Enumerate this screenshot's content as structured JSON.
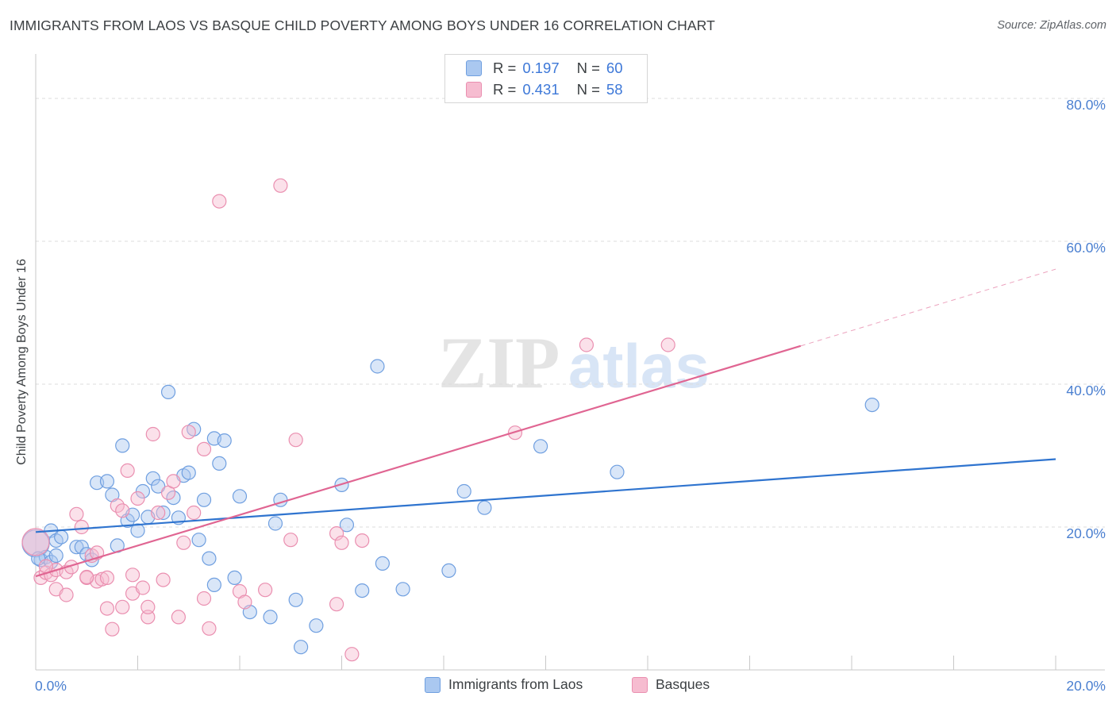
{
  "title": "IMMIGRANTS FROM LAOS VS BASQUE CHILD POVERTY AMONG BOYS UNDER 16 CORRELATION CHART",
  "source": "Source: ZipAtlas.com",
  "watermark": {
    "zip": "ZIP",
    "atlas": "atlas"
  },
  "legend_top": [
    {
      "r_label": "R =",
      "r_value": "0.197",
      "n_label": "N =",
      "n_value": "60"
    },
    {
      "r_label": "R =",
      "r_value": "0.431",
      "n_label": "N =",
      "n_value": "58"
    }
  ],
  "legend_bottom": [
    "Immigrants from Laos",
    "Basques"
  ],
  "colors": {
    "series_blue_fill": "#aac8f0",
    "series_blue_stroke": "#6f9fe0",
    "series_blue_line": "#2f74cf",
    "series_pink_fill": "#f6bcd0",
    "series_pink_stroke": "#ea8fb0",
    "series_pink_line": "#e06592",
    "tick_text": "#4a7fd0",
    "grid": "#dddddd"
  },
  "chart_data": {
    "type": "scatter",
    "title": "IMMIGRANTS FROM LAOS VS BASQUE CHILD POVERTY AMONG BOYS UNDER 16 CORRELATION CHART",
    "xlabel": "",
    "ylabel": "Child Poverty Among Boys Under 16",
    "xlim": [
      0,
      20
    ],
    "ylim": [
      0,
      85
    ],
    "x_ticks": [
      "0.0%",
      "20.0%"
    ],
    "y_ticks": [
      {
        "value": 20,
        "label": "20.0%"
      },
      {
        "value": 40,
        "label": "40.0%"
      },
      {
        "value": 60,
        "label": "60.0%"
      },
      {
        "value": 80,
        "label": "80.0%"
      }
    ],
    "grid": "horizontal dashed",
    "legend_position": "top-center",
    "series": [
      {
        "name": "Immigrants from Laos",
        "R": 0.197,
        "N": 60,
        "trend": {
          "x": [
            0,
            20
          ],
          "y": [
            19.3,
            29.5
          ],
          "dashed_from": null
        },
        "points": [
          [
            0.0,
            17.7
          ],
          [
            0.1,
            15.4
          ],
          [
            0.2,
            15.8
          ],
          [
            0.3,
            19.5
          ],
          [
            0.3,
            15.1
          ],
          [
            0.4,
            16.0
          ],
          [
            0.4,
            18.1
          ],
          [
            0.5,
            18.6
          ],
          [
            0.8,
            17.2
          ],
          [
            0.9,
            17.2
          ],
          [
            1.0,
            16.2
          ],
          [
            1.1,
            15.4
          ],
          [
            1.2,
            26.2
          ],
          [
            1.4,
            26.4
          ],
          [
            1.5,
            24.5
          ],
          [
            1.6,
            17.4
          ],
          [
            1.7,
            31.4
          ],
          [
            1.8,
            20.9
          ],
          [
            1.9,
            21.7
          ],
          [
            2.0,
            19.5
          ],
          [
            2.1,
            25.0
          ],
          [
            2.2,
            21.4
          ],
          [
            2.3,
            26.8
          ],
          [
            2.4,
            25.7
          ],
          [
            2.5,
            22.0
          ],
          [
            2.6,
            38.9
          ],
          [
            2.7,
            24.1
          ],
          [
            2.8,
            21.3
          ],
          [
            2.9,
            27.2
          ],
          [
            3.0,
            27.6
          ],
          [
            3.1,
            33.7
          ],
          [
            3.2,
            18.2
          ],
          [
            3.3,
            23.8
          ],
          [
            3.4,
            15.6
          ],
          [
            3.5,
            32.4
          ],
          [
            3.5,
            11.9
          ],
          [
            3.6,
            28.9
          ],
          [
            3.7,
            32.1
          ],
          [
            3.9,
            12.9
          ],
          [
            4.0,
            24.3
          ],
          [
            4.2,
            8.1
          ],
          [
            4.6,
            7.4
          ],
          [
            4.7,
            20.5
          ],
          [
            4.8,
            23.8
          ],
          [
            5.1,
            9.8
          ],
          [
            5.2,
            3.2
          ],
          [
            5.5,
            6.2
          ],
          [
            6.0,
            25.9
          ],
          [
            6.1,
            20.3
          ],
          [
            6.4,
            11.1
          ],
          [
            6.7,
            42.5
          ],
          [
            6.8,
            14.9
          ],
          [
            7.2,
            11.3
          ],
          [
            8.1,
            13.9
          ],
          [
            8.4,
            25.0
          ],
          [
            8.8,
            22.7
          ],
          [
            9.9,
            31.3
          ],
          [
            11.4,
            27.7
          ],
          [
            16.4,
            37.1
          ],
          [
            0.05,
            15.6
          ]
        ]
      },
      {
        "name": "Basques",
        "R": 0.431,
        "N": 58,
        "trend": {
          "x": [
            0,
            20
          ],
          "y": [
            13.1,
            56.1
          ],
          "dashed_from": 15.0
        },
        "points": [
          [
            0.0,
            17.9
          ],
          [
            0.1,
            12.9
          ],
          [
            0.2,
            13.6
          ],
          [
            0.3,
            13.3
          ],
          [
            0.4,
            11.3
          ],
          [
            0.4,
            14.0
          ],
          [
            0.6,
            10.5
          ],
          [
            0.6,
            13.7
          ],
          [
            0.8,
            21.8
          ],
          [
            0.9,
            20.0
          ],
          [
            1.0,
            12.9
          ],
          [
            1.1,
            16.0
          ],
          [
            1.2,
            16.4
          ],
          [
            1.2,
            12.4
          ],
          [
            1.3,
            12.7
          ],
          [
            1.4,
            8.6
          ],
          [
            1.4,
            12.9
          ],
          [
            1.5,
            5.7
          ],
          [
            1.6,
            23.0
          ],
          [
            1.7,
            22.3
          ],
          [
            1.7,
            8.8
          ],
          [
            1.8,
            27.9
          ],
          [
            1.9,
            13.3
          ],
          [
            1.9,
            10.7
          ],
          [
            2.0,
            24.0
          ],
          [
            2.1,
            11.5
          ],
          [
            2.2,
            7.4
          ],
          [
            2.2,
            8.8
          ],
          [
            2.3,
            33.0
          ],
          [
            2.4,
            22.0
          ],
          [
            2.5,
            12.6
          ],
          [
            2.6,
            24.8
          ],
          [
            2.7,
            26.4
          ],
          [
            2.8,
            7.4
          ],
          [
            2.9,
            17.8
          ],
          [
            3.0,
            33.3
          ],
          [
            3.1,
            22.0
          ],
          [
            3.3,
            30.9
          ],
          [
            3.3,
            10.0
          ],
          [
            3.4,
            5.8
          ],
          [
            3.6,
            65.6
          ],
          [
            4.0,
            11.0
          ],
          [
            4.1,
            9.5
          ],
          [
            4.5,
            11.2
          ],
          [
            4.8,
            67.8
          ],
          [
            5.0,
            18.2
          ],
          [
            5.1,
            32.2
          ],
          [
            5.9,
            19.1
          ],
          [
            5.9,
            9.2
          ],
          [
            6.0,
            17.8
          ],
          [
            6.2,
            2.2
          ],
          [
            6.4,
            18.1
          ],
          [
            9.4,
            33.2
          ],
          [
            10.8,
            45.5
          ],
          [
            12.4,
            45.5
          ],
          [
            0.7,
            14.4
          ],
          [
            1.0,
            13.0
          ],
          [
            0.2,
            14.5
          ]
        ]
      }
    ]
  }
}
